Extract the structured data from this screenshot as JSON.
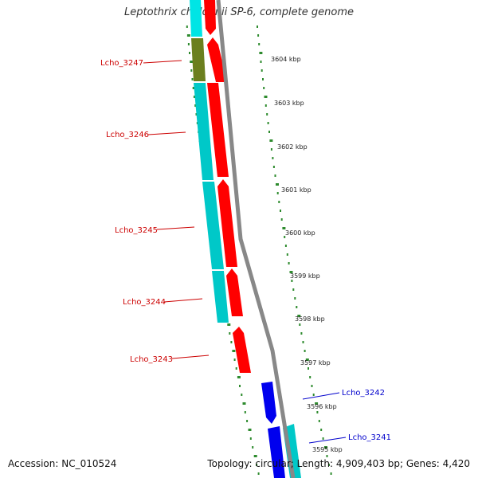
{
  "title": "Leptothrix cholodnii SP-6, complete genome",
  "accession": "Accession: NC_010524",
  "summary": "Topology: circular; Length: 4,909,403 bp; Genes: 4,420",
  "ticks": [
    "3604 kbp",
    "3603 kbp",
    "3602 kbp",
    "3601 kbp",
    "3600 kbp",
    "3599 kbp",
    "3598 kbp",
    "3597 kbp",
    "3596 kbp",
    "3595 kbp"
  ],
  "genes": [
    {
      "label": "Lcho_3247",
      "color": "#cc0000"
    },
    {
      "label": "Lcho_3246",
      "color": "#cc0000"
    },
    {
      "label": "Lcho_3245",
      "color": "#cc0000"
    },
    {
      "label": "Lcho_3244",
      "color": "#cc0000"
    },
    {
      "label": "Lcho_3243",
      "color": "#cc0000"
    },
    {
      "label": "Lcho_3242",
      "color": "#0000cc"
    },
    {
      "label": "Lcho_3241",
      "color": "#0000cc"
    }
  ],
  "colors": {
    "forward_cds": "#ff0000",
    "reverse_cds": "#0000ee",
    "feature_cyan": "#00cccc",
    "feature_olive": "#6b7f1e",
    "backbone": "#888888",
    "tick_marks": "#2e8b2e"
  }
}
